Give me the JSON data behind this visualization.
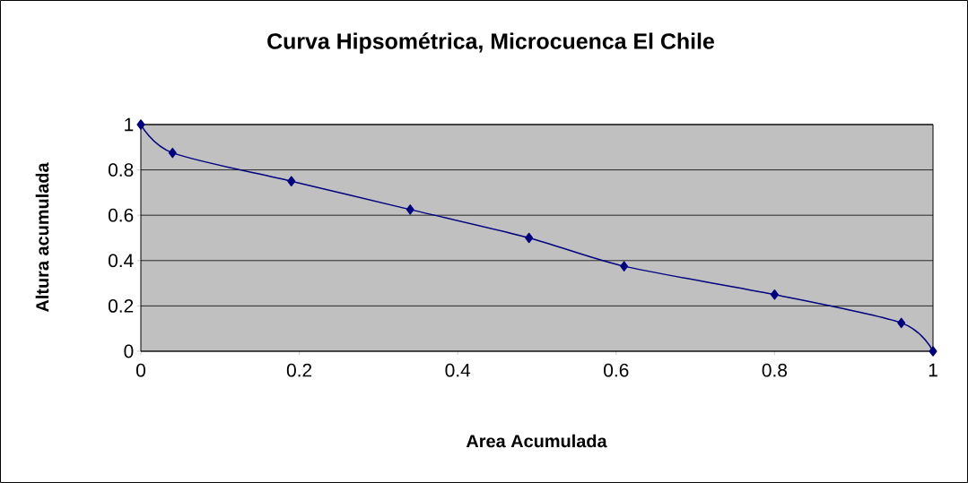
{
  "chart_data": {
    "type": "line",
    "title": "Curva Hipsométrica, Microcuenca El Chile",
    "xlabel": "Area Acumulada",
    "ylabel": "Altura acumulada",
    "x": [
      0,
      0.04,
      0.19,
      0.34,
      0.49,
      0.61,
      0.8,
      0.96,
      1
    ],
    "series": [
      {
        "color": "#000080",
        "values": [
          1,
          0.875,
          0.75,
          0.625,
          0.5,
          0.375,
          0.25,
          0.125,
          0
        ]
      }
    ],
    "xlim": [
      0,
      1
    ],
    "ylim": [
      0,
      1
    ],
    "xticks": [
      0,
      0.2,
      0.4,
      0.6,
      0.8,
      1
    ],
    "yticks": [
      0,
      0.2,
      0.4,
      0.6,
      0.8,
      1
    ],
    "grid": "y",
    "marker": "diamond",
    "line_style": "solid"
  }
}
